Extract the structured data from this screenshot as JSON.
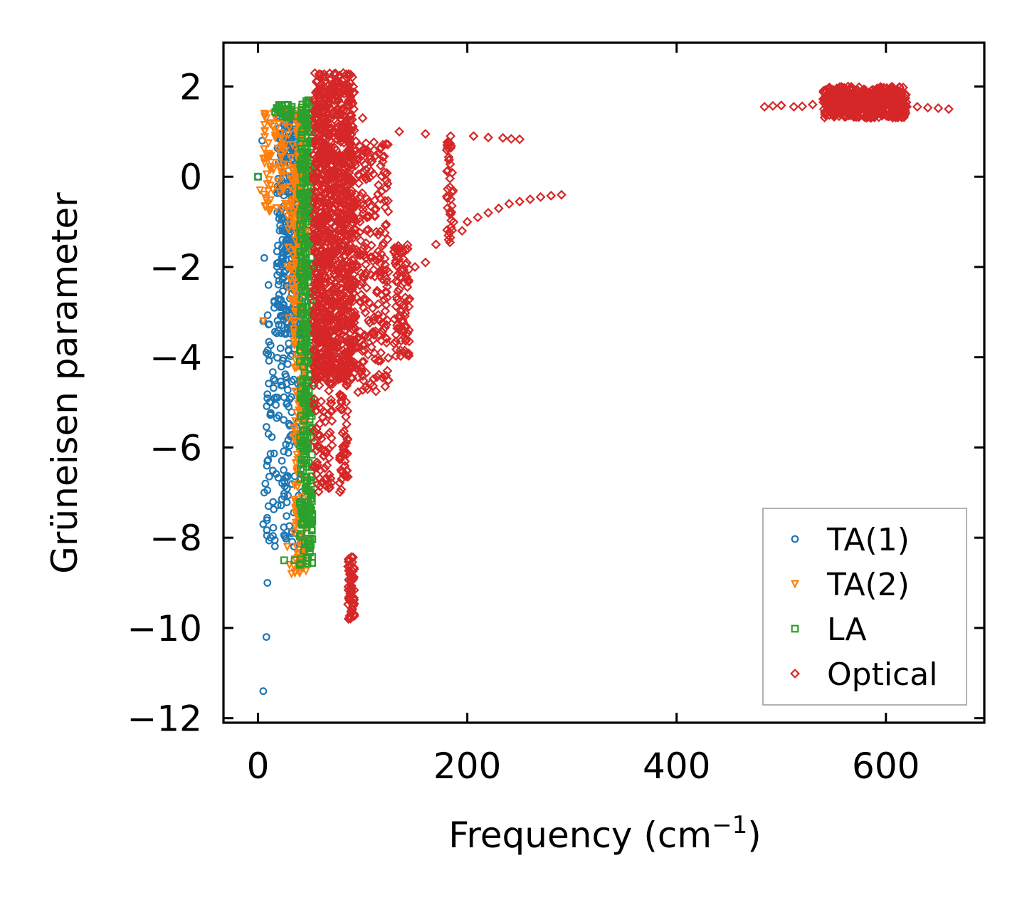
{
  "chart_data": {
    "type": "scatter",
    "title": "",
    "xlabel": "Frequency (cm",
    "xlabel_sup": "−1",
    "xlabel_end": ")",
    "ylabel": "Grüneisen parameter",
    "xlim": [
      -33,
      694
    ],
    "ylim": [
      -12.1,
      2.97
    ],
    "xticks": [
      0,
      200,
      400,
      600
    ],
    "xtick_labels": [
      "0",
      "200",
      "400",
      "600"
    ],
    "yticks": [
      2,
      0,
      -2,
      -4,
      -6,
      -8,
      -10,
      -12
    ],
    "ytick_labels": [
      "2",
      "0",
      "−2",
      "−4",
      "−6",
      "−8",
      "−10",
      "−12"
    ],
    "grid": false,
    "legend_position": "lower-right",
    "series": [
      {
        "name": "TA(1)",
        "marker": "circle",
        "color": "#1f77b4",
        "clusters": [
          {
            "x": [
              18,
              42
            ],
            "y": [
              -3.5,
              1.4
            ],
            "n": 340
          },
          {
            "x": [
              8,
              44
            ],
            "y": [
              -8.2,
              -2.6
            ],
            "n": 170
          }
        ],
        "points": [
          [
            0,
            0
          ],
          [
            4,
            0.8
          ],
          [
            6,
            -1.8
          ],
          [
            10,
            -2.4
          ],
          [
            5,
            -3.2
          ],
          [
            8,
            -3.9
          ],
          [
            12,
            -5.0
          ],
          [
            10,
            -5.7
          ],
          [
            9,
            -6.3
          ],
          [
            7,
            -6.8
          ],
          [
            6,
            -7.0
          ],
          [
            10,
            -7.3
          ],
          [
            5,
            -7.7
          ],
          [
            9,
            -9.0
          ],
          [
            8,
            -10.2
          ],
          [
            5,
            -11.4
          ]
        ]
      },
      {
        "name": "TA(2)",
        "marker": "triangle-down",
        "color": "#ff7f0e",
        "clusters": [
          {
            "x": [
              5,
              44
            ],
            "y": [
              -0.8,
              1.5
            ],
            "n": 130
          },
          {
            "x": [
              34,
              46
            ],
            "y": [
              -8.8,
              1.5
            ],
            "n": 280
          },
          {
            "x": [
              28,
              40
            ],
            "y": [
              -3.5,
              -0.5
            ],
            "n": 40
          }
        ],
        "points": [
          [
            2,
            -0.3
          ],
          [
            6,
            1.4
          ],
          [
            5,
            -3.2
          ],
          [
            30,
            -8.6
          ],
          [
            32,
            -8.8
          ],
          [
            28,
            -8.2
          ]
        ]
      },
      {
        "name": "LA",
        "marker": "square",
        "color": "#2ca02c",
        "clusters": [
          {
            "x": [
              40,
              52
            ],
            "y": [
              -8.6,
              1.7
            ],
            "n": 420
          },
          {
            "x": [
              15,
              35
            ],
            "y": [
              1.3,
              1.6
            ],
            "n": 25
          }
        ],
        "points": [
          [
            0,
            0
          ],
          [
            40,
            -8.6
          ],
          [
            35,
            -8.5
          ],
          [
            25,
            -8.5
          ]
        ]
      },
      {
        "name": "Optical",
        "marker": "diamond",
        "color": "#d62728",
        "clusters": [
          {
            "x": [
              53,
              92
            ],
            "y": [
              -4.5,
              2.3
            ],
            "n": 1100
          },
          {
            "x": [
              53,
              72
            ],
            "y": [
              -7.0,
              -3.0
            ],
            "n": 120
          },
          {
            "x": [
              78,
              86
            ],
            "y": [
              -7.0,
              -4.0
            ],
            "n": 60
          },
          {
            "x": [
              86,
              92
            ],
            "y": [
              -9.8,
              -8.4
            ],
            "n": 60
          },
          {
            "x": [
              92,
              125
            ],
            "y": [
              -4.8,
              0.8
            ],
            "n": 260
          },
          {
            "x": [
              130,
              145
            ],
            "y": [
              -4.0,
              -1.5
            ],
            "n": 90
          },
          {
            "x": [
              180,
              187
            ],
            "y": [
              -1.5,
              0.8
            ],
            "n": 40
          },
          {
            "x": [
              540,
              620
            ],
            "y": [
              1.3,
              2.0
            ],
            "n": 520
          }
        ],
        "points": [
          [
            100,
            1.3
          ],
          [
            135,
            1.0
          ],
          [
            160,
            0.95
          ],
          [
            184,
            0.9
          ],
          [
            206,
            0.9
          ],
          [
            220,
            0.87
          ],
          [
            234,
            0.86
          ],
          [
            242,
            0.84
          ],
          [
            250,
            0.83
          ],
          [
            150,
            -2.0
          ],
          [
            160,
            -1.9
          ],
          [
            170,
            -1.5
          ],
          [
            182,
            -1.3
          ],
          [
            195,
            -1.2
          ],
          [
            200,
            -1.0
          ],
          [
            210,
            -0.9
          ],
          [
            220,
            -0.8
          ],
          [
            230,
            -0.7
          ],
          [
            240,
            -0.6
          ],
          [
            250,
            -0.55
          ],
          [
            260,
            -0.5
          ],
          [
            270,
            -0.45
          ],
          [
            280,
            -0.42
          ],
          [
            290,
            -0.4
          ],
          [
            484,
            1.55
          ],
          [
            492,
            1.57
          ],
          [
            500,
            1.58
          ],
          [
            512,
            1.55
          ],
          [
            520,
            1.56
          ],
          [
            530,
            1.6
          ],
          [
            620,
            1.55
          ],
          [
            630,
            1.55
          ],
          [
            640,
            1.53
          ],
          [
            650,
            1.52
          ],
          [
            660,
            1.5
          ]
        ]
      }
    ]
  }
}
